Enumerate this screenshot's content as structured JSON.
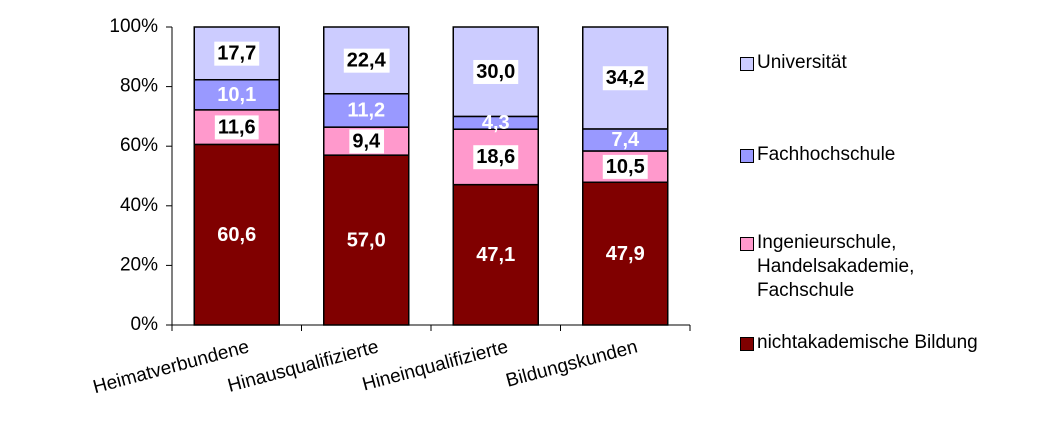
{
  "chart_data": {
    "type": "stacked_bar",
    "categories": [
      "Heimatverbundene",
      "Hinausqualifizierte",
      "Hineinqualifizierte",
      "Bildungskunden"
    ],
    "series": [
      {
        "name": "nichtakademische Bildung",
        "color": "#800000",
        "values": [
          60.6,
          57.0,
          47.1,
          47.9
        ],
        "value_labels": [
          "60,6",
          "57,0",
          "47,1",
          "47,9"
        ]
      },
      {
        "name": "Ingenieurschule,\nHandelsakademie,\nFachschule",
        "color": "#ff99cc",
        "values": [
          11.6,
          9.4,
          18.6,
          10.5
        ],
        "value_labels": [
          "11,6",
          "9,4",
          "18,6",
          "10,5"
        ]
      },
      {
        "name": "Fachhochschule",
        "color": "#9999ff",
        "values": [
          10.1,
          11.2,
          4.3,
          7.4
        ],
        "value_labels": [
          "10,1",
          "11,2",
          "4,3",
          "7,4"
        ]
      },
      {
        "name": "Universität",
        "color": "#ccccff",
        "values": [
          17.7,
          22.4,
          30.0,
          34.2
        ],
        "value_labels": [
          "17,7",
          "22,4",
          "30,0",
          "34,2"
        ]
      }
    ],
    "ylim": [
      0,
      100
    ],
    "yticks": [
      {
        "value": 0,
        "label": "0%"
      },
      {
        "value": 20,
        "label": "20%"
      },
      {
        "value": 40,
        "label": "40%"
      },
      {
        "value": 60,
        "label": "60%"
      },
      {
        "value": 80,
        "label": "80%"
      },
      {
        "value": 100,
        "label": "100%"
      }
    ]
  }
}
